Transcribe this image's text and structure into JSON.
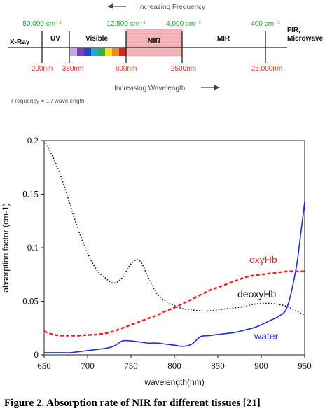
{
  "spectrum": {
    "top_arrow_label": "Increasing Frequency",
    "bottom_arrow_label": "Increasing Wavelength",
    "formula": "Frequency = 1 / wavelength",
    "regions": [
      "X-Ray",
      "UV",
      "Visible",
      "NIR",
      "MIR",
      "FIR,",
      "Microwave"
    ],
    "frequencies": [
      "50,000 cm⁻¹",
      "12,500 cm⁻¹",
      "4,000 cm⁻¹",
      "400 cm⁻¹"
    ],
    "wavelengths": [
      "200nm",
      "380nm",
      "800nm",
      "2500nm",
      "25,000nm"
    ],
    "visible_band_colors": [
      "#c9a8e8",
      "#7a3fc4",
      "#2a3fd0",
      "#19a8e0",
      "#2fb04a",
      "#f2e21a",
      "#f08a1c",
      "#e62020"
    ],
    "nir_highlight_color": "#f4b6bb",
    "frequency_color": "#2e9e3a",
    "wavelength_color": "#d63a2a"
  },
  "chart_data": {
    "type": "line",
    "xlabel": "wavelength(nm)",
    "ylabel": "absorption factor (cm-1)",
    "xlim": [
      650,
      950
    ],
    "ylim": [
      0,
      0.2
    ],
    "x_ticks": [
      "650",
      "700",
      "750",
      "800",
      "850",
      "900",
      "950"
    ],
    "y_ticks": [
      "0",
      "0.05",
      "0.1",
      "0.15",
      "0.2"
    ],
    "grid": false,
    "series": [
      {
        "name": "oxyHb",
        "color": "#e8221a",
        "style": "dashed",
        "x": [
          650,
          660,
          670,
          680,
          690,
          700,
          710,
          720,
          730,
          740,
          750,
          760,
          770,
          780,
          790,
          800,
          810,
          820,
          830,
          840,
          850,
          860,
          870,
          880,
          890,
          900,
          910,
          920,
          930,
          940,
          950
        ],
        "y": [
          0.022,
          0.019,
          0.018,
          0.018,
          0.018,
          0.0185,
          0.019,
          0.02,
          0.022,
          0.025,
          0.028,
          0.031,
          0.034,
          0.037,
          0.041,
          0.044,
          0.048,
          0.052,
          0.056,
          0.06,
          0.063,
          0.066,
          0.069,
          0.072,
          0.074,
          0.075,
          0.076,
          0.077,
          0.078,
          0.078,
          0.078
        ]
      },
      {
        "name": "deoxyHb",
        "color": "#111111",
        "style": "dotted",
        "x": [
          650,
          660,
          670,
          680,
          690,
          700,
          710,
          720,
          730,
          740,
          750,
          760,
          770,
          780,
          790,
          800,
          810,
          820,
          830,
          840,
          850,
          860,
          870,
          880,
          890,
          900,
          910,
          920,
          930,
          940,
          950
        ],
        "y": [
          0.2,
          0.185,
          0.165,
          0.14,
          0.115,
          0.095,
          0.08,
          0.072,
          0.067,
          0.072,
          0.085,
          0.088,
          0.072,
          0.057,
          0.05,
          0.046,
          0.043,
          0.042,
          0.041,
          0.041,
          0.042,
          0.043,
          0.044,
          0.045,
          0.047,
          0.048,
          0.048,
          0.047,
          0.045,
          0.041,
          0.037
        ]
      },
      {
        "name": "water",
        "color": "#1f2fe0",
        "style": "solid",
        "x": [
          650,
          660,
          670,
          680,
          690,
          700,
          710,
          720,
          730,
          740,
          750,
          760,
          770,
          780,
          790,
          800,
          810,
          820,
          830,
          840,
          850,
          860,
          870,
          880,
          890,
          900,
          910,
          920,
          930,
          940,
          945,
          950
        ],
        "y": [
          0.002,
          0.002,
          0.002,
          0.002,
          0.003,
          0.004,
          0.005,
          0.006,
          0.008,
          0.013,
          0.013,
          0.012,
          0.011,
          0.011,
          0.01,
          0.009,
          0.008,
          0.01,
          0.017,
          0.018,
          0.019,
          0.02,
          0.021,
          0.023,
          0.025,
          0.028,
          0.032,
          0.036,
          0.045,
          0.08,
          0.11,
          0.143
        ]
      }
    ]
  },
  "caption": "Figure 2. Absorption rate of NIR for different tissues [21]"
}
